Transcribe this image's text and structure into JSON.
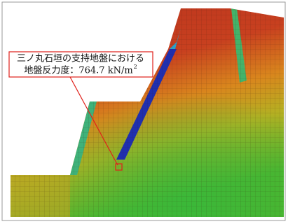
{
  "callout": {
    "line1": "三ノ丸石垣の支持地盤における",
    "line2": "地盤反力度：764.7 kN/m",
    "superscript": "2"
  }
}
